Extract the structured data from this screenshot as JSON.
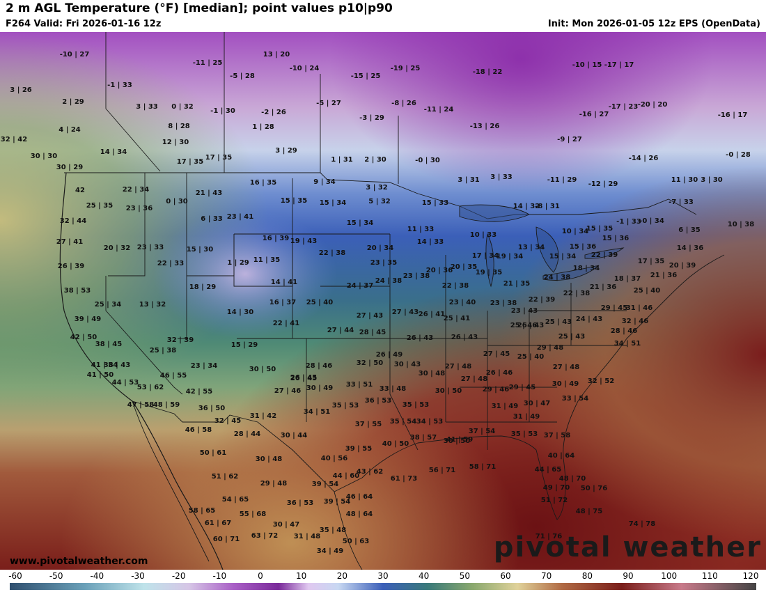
{
  "header": {
    "title": "2 m AGL Temperature (°F) [median]; point values p10|p90",
    "valid": "F264 Valid: Fri 2026-01-16 12z",
    "init": "Init: Mon 2026-01-05 12z EPS (OpenData)"
  },
  "footer": {
    "site": "www.pivotalweather.com",
    "brand": "pivotal weather"
  },
  "colorbar": {
    "ticks": [
      "-60",
      "-50",
      "-40",
      "-30",
      "-20",
      "-10",
      "0",
      "10",
      "20",
      "30",
      "40",
      "50",
      "60",
      "70",
      "80",
      "90",
      "100",
      "110",
      "120"
    ]
  },
  "points": [
    "-10|27",
    "-11|25",
    "13|20",
    "-10|24",
    "-15|25",
    "-19|25",
    "-18|22",
    "-10|15",
    "-17|17",
    "3|26",
    "-1|33",
    "-5|28",
    "-8|26",
    "-11|24",
    "-5|27",
    "-3|29",
    "-16|27",
    "-17|23",
    "-20|20",
    "-16|17",
    "2|29",
    "3|33",
    "0|32",
    "-1|30",
    "-2|26",
    "-13|26",
    "-9|27",
    "-14|26",
    "-0|28",
    "32|42",
    "4|24",
    "8|28",
    "1|28",
    "12|30",
    "3|29",
    "1|31",
    "2|30",
    "-0|30",
    "30|30",
    "30|29",
    "14|34",
    "17|35",
    "17|35",
    "3|31",
    "3|33",
    "-11|29",
    "-12|29",
    "11|30",
    "3|30",
    "42",
    "22|34",
    "21|43",
    "16|35",
    "9|34",
    "3|32",
    "15|33",
    "-8|31",
    "-7|33",
    "25|35",
    "23|36",
    "0|30",
    "15|35",
    "15|34",
    "5|32",
    "14|32",
    "-1|33",
    "-0|34",
    "6|35",
    "10|38",
    "32|44",
    "6|33",
    "23|41",
    "15|34",
    "11|33",
    "10|33",
    "10|34",
    "15|35",
    "15|36",
    "27|41",
    "20|32",
    "23|33",
    "16|39",
    "19|43",
    "14|33",
    "13|34",
    "15|36",
    "15|30",
    "22|38",
    "20|34",
    "17|34",
    "19|34",
    "15|34",
    "22|39",
    "17|35",
    "14|36",
    "26|39",
    "22|33",
    "1|29",
    "11|35",
    "23|35",
    "20|36",
    "20|35",
    "19|35",
    "18|34",
    "20|39",
    "38|53",
    "18|29",
    "14|41",
    "24|37",
    "24|38",
    "23|38",
    "22|38",
    "21|35",
    "24|38",
    "18|37",
    "21|36",
    "25|34",
    "13|32",
    "16|37",
    "25|40",
    "23|40",
    "23|38",
    "22|39",
    "22|38",
    "21|36",
    "25|40",
    "39|49",
    "14|30",
    "22|41",
    "27|43",
    "27|43",
    "26|41",
    "25|41",
    "23|43",
    "29|45",
    "31|46",
    "32|46",
    "42|50",
    "27|44",
    "28|45",
    "26|45",
    "25|46",
    "25|43",
    "24|43",
    "28|46",
    "38|45",
    "32|39",
    "15|29",
    "26|43",
    "26|43",
    "26|43",
    "25|43",
    "34|51",
    "41|54",
    "25|38",
    "23|34",
    "30|50",
    "26|49",
    "27|45",
    "25|40",
    "29|48",
    "38|43",
    "28|46",
    "32|50",
    "30|43",
    "30|48",
    "27|48",
    "27|48",
    "41|50",
    "46|55",
    "26|45",
    "33|51",
    "27|48",
    "26|46",
    "29|45",
    "30|49",
    "32|52",
    "44|53",
    "53|62",
    "42|55",
    "27|46",
    "30|49",
    "33|48",
    "30|50",
    "29|46",
    "33|54",
    "47|58",
    "48|59",
    "36|50",
    "35|53",
    "36|53",
    "35|53",
    "31|49",
    "30|47",
    "32|45",
    "31|42",
    "34|51",
    "37|55",
    "35|54",
    "34|53",
    "30|50",
    "31|49",
    "46|58",
    "28|44",
    "30|44",
    "40|50",
    "38|57",
    "41|59",
    "37|54",
    "35|53",
    "37|58",
    "50|61",
    "39|55",
    "40|64",
    "30|48",
    "40|56",
    "44|60",
    "43|62",
    "61|73",
    "56|71",
    "58|71",
    "44|65",
    "48|70",
    "51|62",
    "29|48",
    "39|54",
    "49|70",
    "50|76",
    "54|65",
    "36|53",
    "39|54",
    "46|64",
    "51|72",
    "58|65",
    "55|68",
    "48|64",
    "48|75",
    "61|67",
    "30|47",
    "35|48",
    "74|78",
    "60|71",
    "63|72",
    "31|48",
    "50|63",
    "71|76",
    "34|49"
  ],
  "map_labels": {
    "legend_note": ""
  }
}
